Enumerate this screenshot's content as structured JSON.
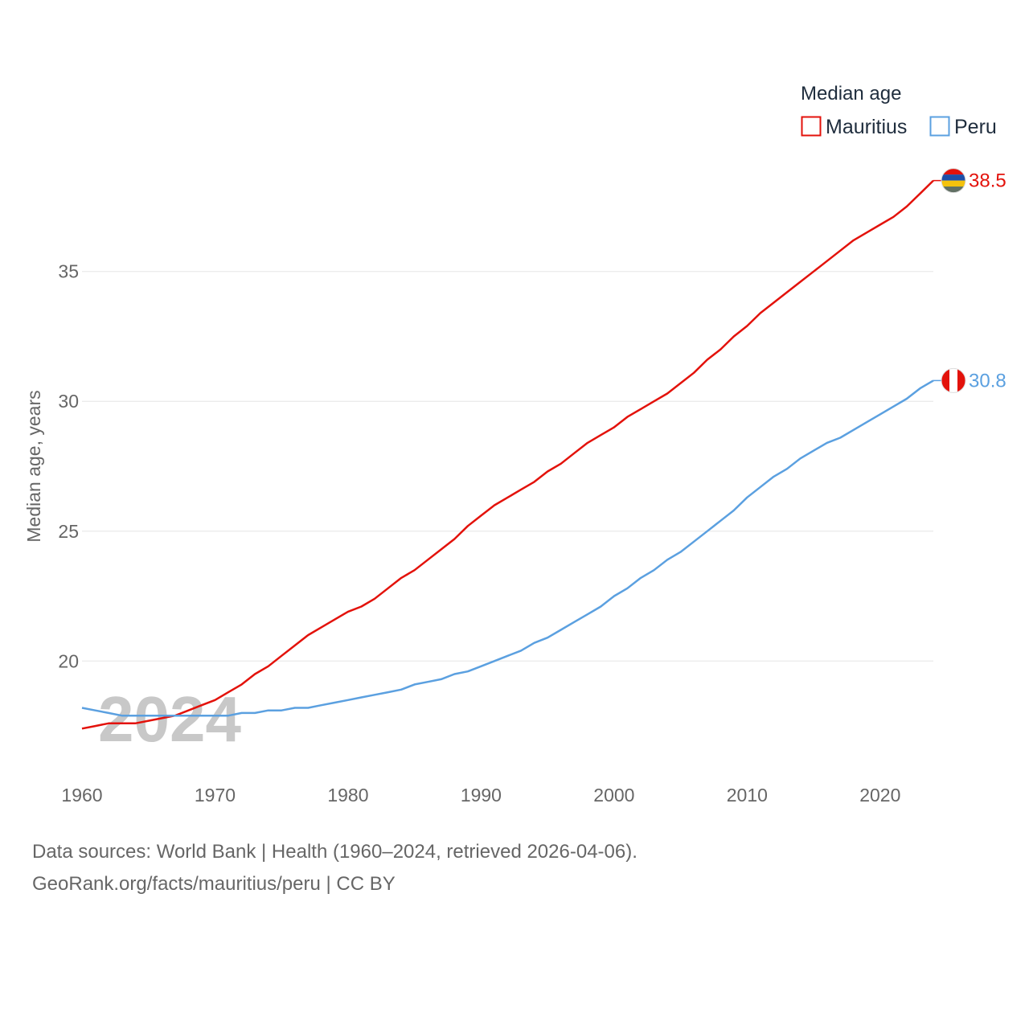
{
  "chart_data": {
    "type": "line",
    "legend_title": "Median age",
    "ylabel": "Median age, years",
    "xlabel": "",
    "xlim": [
      1960,
      2024
    ],
    "ylim": [
      15.8,
      40.5
    ],
    "yticks": [
      20,
      25,
      30,
      35
    ],
    "xticks": [
      1960,
      1970,
      1980,
      1990,
      2000,
      2010,
      2020
    ],
    "watermark_year": "2024",
    "legend_position": "top-right",
    "x": [
      1960,
      1961,
      1962,
      1963,
      1964,
      1965,
      1966,
      1967,
      1968,
      1969,
      1970,
      1971,
      1972,
      1973,
      1974,
      1975,
      1976,
      1977,
      1978,
      1979,
      1980,
      1981,
      1982,
      1983,
      1984,
      1985,
      1986,
      1987,
      1988,
      1989,
      1990,
      1991,
      1992,
      1993,
      1994,
      1995,
      1996,
      1997,
      1998,
      1999,
      2000,
      2001,
      2002,
      2003,
      2004,
      2005,
      2006,
      2007,
      2008,
      2009,
      2010,
      2011,
      2012,
      2013,
      2014,
      2015,
      2016,
      2017,
      2018,
      2019,
      2020,
      2021,
      2022,
      2023,
      2024
    ],
    "series": [
      {
        "name": "Mauritius",
        "color": "#e3120b",
        "end_label": "38.5",
        "values": [
          17.4,
          17.5,
          17.6,
          17.6,
          17.6,
          17.7,
          17.8,
          17.9,
          18.1,
          18.3,
          18.5,
          18.8,
          19.1,
          19.5,
          19.8,
          20.2,
          20.6,
          21.0,
          21.3,
          21.6,
          21.9,
          22.1,
          22.4,
          22.8,
          23.2,
          23.5,
          23.9,
          24.3,
          24.7,
          25.2,
          25.6,
          26.0,
          26.3,
          26.6,
          26.9,
          27.3,
          27.6,
          28.0,
          28.4,
          28.7,
          29.0,
          29.4,
          29.7,
          30.0,
          30.3,
          30.7,
          31.1,
          31.6,
          32.0,
          32.5,
          32.9,
          33.4,
          33.8,
          34.2,
          34.6,
          35.0,
          35.4,
          35.8,
          36.2,
          36.5,
          36.8,
          37.1,
          37.5,
          38.0,
          38.5
        ]
      },
      {
        "name": "Peru",
        "color": "#5ba0e0",
        "end_label": "30.8",
        "values": [
          18.2,
          18.1,
          18.0,
          17.9,
          17.9,
          17.9,
          17.9,
          17.9,
          17.9,
          17.9,
          17.9,
          17.9,
          18.0,
          18.0,
          18.1,
          18.1,
          18.2,
          18.2,
          18.3,
          18.4,
          18.5,
          18.6,
          18.7,
          18.8,
          18.9,
          19.1,
          19.2,
          19.3,
          19.5,
          19.6,
          19.8,
          20.0,
          20.2,
          20.4,
          20.7,
          20.9,
          21.2,
          21.5,
          21.8,
          22.1,
          22.5,
          22.8,
          23.2,
          23.5,
          23.9,
          24.2,
          24.6,
          25.0,
          25.4,
          25.8,
          26.3,
          26.7,
          27.1,
          27.4,
          27.8,
          28.1,
          28.4,
          28.6,
          28.9,
          29.2,
          29.5,
          29.8,
          30.1,
          30.5,
          30.8
        ]
      }
    ]
  },
  "source": {
    "line1": "Data sources: World Bank | Health (1960–2024, retrieved 2026-04-06).",
    "line2": "GeoRank.org/facts/mauritius/peru | CC BY"
  }
}
